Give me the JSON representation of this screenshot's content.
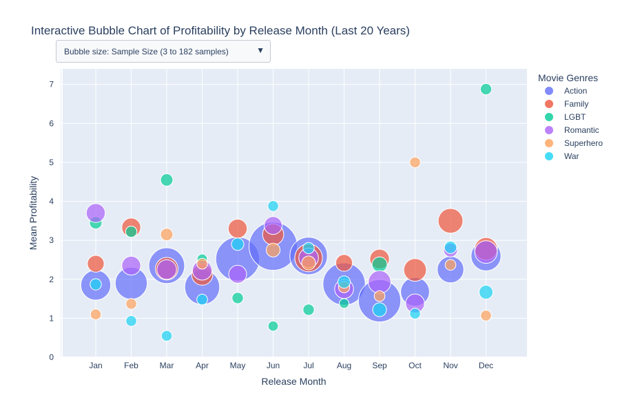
{
  "title": "Interactive Bubble Chart of Profitability by Release Month (Last 20 Years)",
  "dropdown": {
    "selected": "Bubble size: Sample Size (3 to 182 samples)"
  },
  "chart_data": {
    "type": "scatter",
    "title": "Interactive Bubble Chart of Profitability by Release Month (Last 20 Years)",
    "xlabel": "Release Month",
    "ylabel": "Mean Profitability",
    "categories": [
      "Jan",
      "Feb",
      "Mar",
      "Apr",
      "May",
      "Jun",
      "Jul",
      "Aug",
      "Sep",
      "Oct",
      "Nov",
      "Dec"
    ],
    "yticks": [
      0,
      1,
      2,
      3,
      4,
      5,
      6,
      7
    ],
    "ylim": [
      0,
      7.4
    ],
    "legend_title": "Movie Genres",
    "legend_position": "right",
    "size_range": [
      3,
      182
    ],
    "series": [
      {
        "name": "Action",
        "color": "#636efa",
        "values": [
          1.85,
          1.9,
          2.35,
          1.8,
          2.52,
          2.85,
          2.6,
          1.88,
          1.45,
          1.68,
          2.25,
          2.6
        ],
        "sizes": [
          70,
          80,
          100,
          95,
          150,
          182,
          110,
          140,
          140,
          65,
          55,
          70
        ]
      },
      {
        "name": "Family",
        "color": "#ef553b",
        "values": [
          2.4,
          3.33,
          2.27,
          2.12,
          3.3,
          3.15,
          2.55,
          2.42,
          2.52,
          2.24,
          3.5,
          2.78
        ],
        "sizes": [
          22,
          28,
          40,
          35,
          28,
          35,
          60,
          22,
          30,
          40,
          48,
          40
        ]
      },
      {
        "name": "LGBT",
        "color": "#00cc96",
        "values": [
          3.45,
          3.22,
          4.55,
          2.52,
          1.52,
          0.8,
          1.22,
          1.38,
          2.38,
          null,
          null,
          6.88
        ],
        "sizes": [
          12,
          10,
          12,
          8,
          10,
          8,
          10,
          6,
          18,
          null,
          null,
          10
        ]
      },
      {
        "name": "Romantic",
        "color": "#ab63fa",
        "values": [
          3.7,
          2.35,
          2.25,
          2.23,
          2.13,
          3.38,
          2.55,
          1.75,
          1.93,
          1.38,
          2.75,
          2.7
        ],
        "sizes": [
          28,
          28,
          30,
          30,
          25,
          25,
          30,
          28,
          40,
          28,
          15,
          40
        ]
      },
      {
        "name": "Superhero",
        "color": "#ffa15a",
        "values": [
          1.1,
          1.37,
          3.15,
          2.4,
          null,
          2.75,
          2.42,
          1.8,
          1.57,
          5.0,
          2.37,
          1.07
        ],
        "sizes": [
          9,
          9,
          12,
          9,
          null,
          15,
          15,
          10,
          9,
          9,
          9,
          9
        ]
      },
      {
        "name": "War",
        "color": "#19d3f3",
        "values": [
          1.87,
          0.93,
          0.55,
          1.48,
          2.9,
          3.88,
          2.8,
          1.93,
          1.22,
          1.12,
          2.82,
          1.67
        ],
        "sizes": [
          10,
          9,
          9,
          9,
          12,
          9,
          10,
          12,
          15,
          9,
          12,
          15
        ]
      }
    ]
  }
}
